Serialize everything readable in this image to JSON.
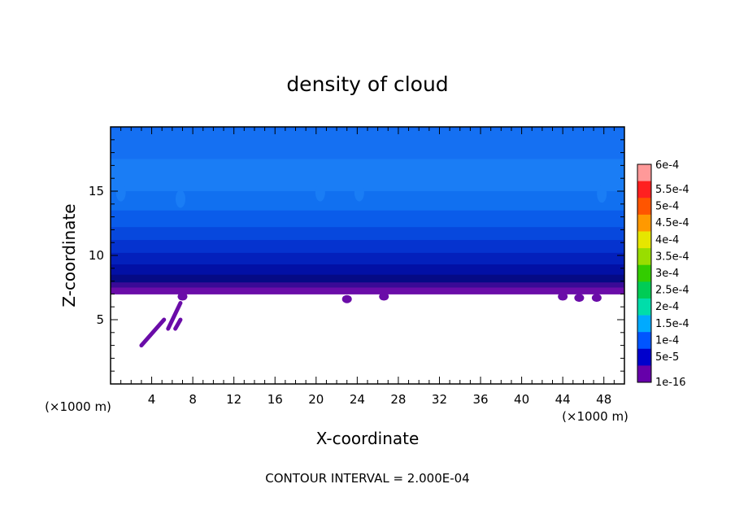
{
  "chart_data": {
    "type": "heatmap",
    "title": "density of cloud",
    "xlabel": "X-coordinate",
    "ylabel": "Z-coordinate",
    "x_unit_left": "(×1000 m)",
    "x_unit_right": "(×1000 m)",
    "footer": "CONTOUR INTERVAL = 2.000E-04",
    "xlim": [
      0,
      50
    ],
    "ylim": [
      0,
      20
    ],
    "x_ticks": [
      4,
      8,
      12,
      16,
      20,
      24,
      28,
      32,
      36,
      40,
      44,
      48
    ],
    "y_ticks": [
      5,
      10,
      15
    ],
    "grid": false,
    "colorbar": {
      "labels": [
        "6e-4",
        "5.5e-4",
        "5e-4",
        "4.5e-4",
        "4e-4",
        "3.5e-4",
        "3e-4",
        "2.5e-4",
        "2e-4",
        "1.5e-4",
        "1e-4",
        "5e-5",
        "1e-16"
      ],
      "colors": [
        "#ff9999",
        "#ff2020",
        "#ff5500",
        "#ff9900",
        "#e6e600",
        "#99dd00",
        "#33cc00",
        "#00cc55",
        "#00ddaa",
        "#00aaff",
        "#0055ff",
        "#0000cc",
        "#6600aa"
      ]
    },
    "layers": [
      {
        "z": [
          19.8,
          20.0
        ],
        "color": "#1066ee"
      },
      {
        "z": [
          17.5,
          19.8
        ],
        "color": "#1570f2"
      },
      {
        "z": [
          15.0,
          17.5
        ],
        "color": "#1a7df5"
      },
      {
        "z": [
          13.5,
          15.0
        ],
        "color": "#1170f0"
      },
      {
        "z": [
          12.2,
          13.5
        ],
        "color": "#0a5cea"
      },
      {
        "z": [
          11.2,
          12.2
        ],
        "color": "#0748dd"
      },
      {
        "z": [
          10.2,
          11.2
        ],
        "color": "#0533cf"
      },
      {
        "z": [
          9.3,
          10.2
        ],
        "color": "#0320bc"
      },
      {
        "z": [
          8.5,
          9.3
        ],
        "color": "#0210a5"
      },
      {
        "z": [
          7.9,
          8.5
        ],
        "color": "#050a85"
      },
      {
        "z": [
          7.5,
          7.9
        ],
        "color": "#3a0a96"
      },
      {
        "z": [
          7.0,
          7.5
        ],
        "color": "#6a0ca8"
      }
    ],
    "patches": [
      {
        "x": 1.0,
        "z": 14.9,
        "color": "#1a7df5"
      },
      {
        "x": 6.8,
        "z": 14.4,
        "color": "#1a7df5"
      },
      {
        "x": 20.4,
        "z": 14.9,
        "color": "#1a7df5"
      },
      {
        "x": 24.2,
        "z": 14.9,
        "color": "#1a7df5"
      },
      {
        "x": 47.8,
        "z": 14.8,
        "color": "#1a7df5"
      }
    ],
    "streaks": [
      {
        "x": [
          3.0,
          5.2
        ],
        "z": [
          3.0,
          5.0
        ],
        "color": "#6a0ca8"
      },
      {
        "x": [
          5.6,
          6.8
        ],
        "z": [
          4.3,
          6.3
        ],
        "color": "#6a0ca8"
      },
      {
        "x": [
          6.3,
          6.8
        ],
        "z": [
          4.3,
          5.0
        ],
        "color": "#6a0ca8"
      }
    ],
    "bottom_bumps": [
      {
        "x": 7.0,
        "z": 6.8,
        "color": "#6a0ca8"
      },
      {
        "x": 23.0,
        "z": 6.6,
        "color": "#6a0ca8"
      },
      {
        "x": 26.6,
        "z": 6.8,
        "color": "#6a0ca8"
      },
      {
        "x": 44.0,
        "z": 6.8,
        "color": "#6a0ca8"
      },
      {
        "x": 45.6,
        "z": 6.7,
        "color": "#6a0ca8"
      },
      {
        "x": 47.3,
        "z": 6.7,
        "color": "#6a0ca8"
      }
    ]
  }
}
